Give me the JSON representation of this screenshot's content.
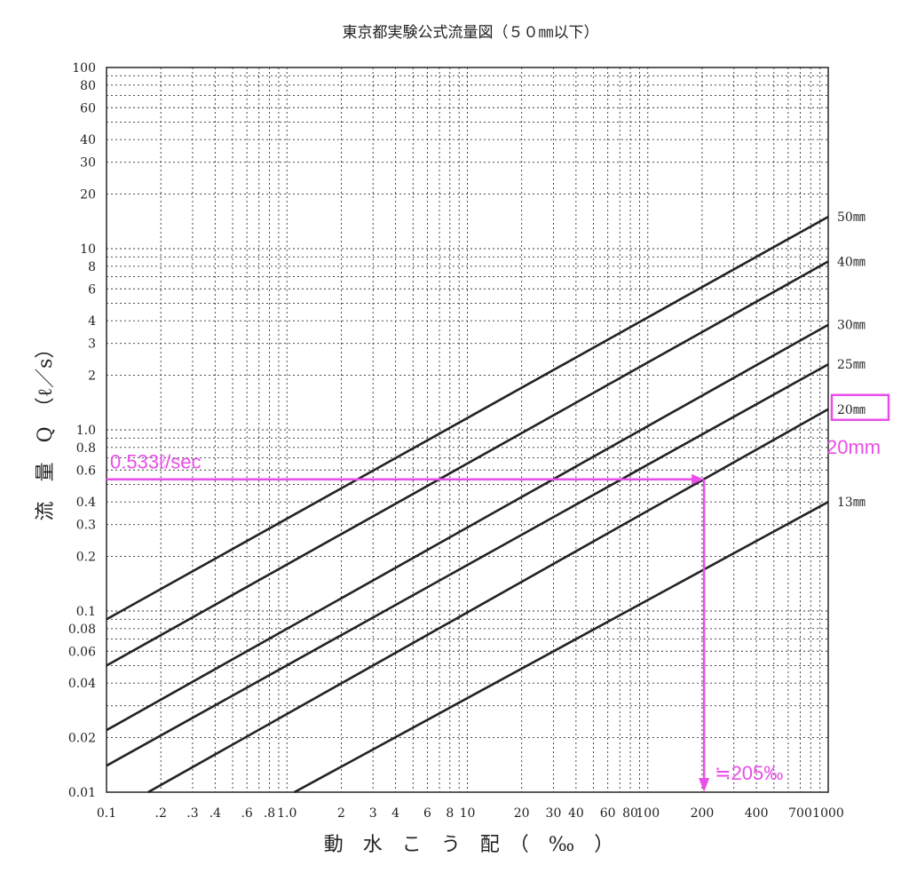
{
  "chart_data": {
    "type": "line",
    "title": "東京都実験公式流量図（５０㎜以下）",
    "xlabel": "動　水　こ　う　配　（　‰　）",
    "ylabel": "流　量　Q　（ℓ／s）",
    "x_scale": "log",
    "y_scale": "log",
    "xlim": [
      0.1,
      1000
    ],
    "ylim": [
      0.01,
      100
    ],
    "grid": true,
    "x_ticks": [
      0.1,
      0.2,
      0.3,
      0.4,
      0.6,
      0.8,
      1,
      2,
      3,
      4,
      6,
      8,
      10,
      20,
      30,
      40,
      60,
      80,
      100,
      200,
      400,
      700,
      1000
    ],
    "x_tick_labels": [
      "0.1",
      ".2",
      ".3",
      ".4",
      ".6",
      ".8",
      "1.0",
      "2",
      "3",
      "4",
      "6",
      "8",
      "10",
      "20",
      "30",
      "40",
      "60",
      "80",
      "100",
      "200",
      "400",
      "700",
      "1000"
    ],
    "y_ticks": [
      100,
      80,
      60,
      40,
      30,
      20,
      10,
      8,
      6,
      4,
      3,
      2,
      1,
      0.8,
      0.6,
      0.4,
      0.3,
      0.2,
      0.1,
      0.08,
      0.06,
      0.04,
      0.02,
      0.01
    ],
    "y_tick_labels": [
      "100",
      "80",
      "60",
      "40",
      "30",
      "20",
      "10",
      "8",
      "6",
      "4",
      "3",
      "2",
      "1.0",
      "0.8",
      "0.6",
      "0.4",
      "0.3",
      "0.2",
      "0.1",
      "0.08",
      "0.06",
      "0.04",
      "0.02",
      "0.01"
    ],
    "series": [
      {
        "name": "50㎜",
        "points": [
          [
            0.1,
            0.09
          ],
          [
            1000,
            15
          ]
        ]
      },
      {
        "name": "40㎜",
        "points": [
          [
            0.1,
            0.05
          ],
          [
            1000,
            8.5
          ]
        ]
      },
      {
        "name": "30㎜",
        "points": [
          [
            0.1,
            0.022
          ],
          [
            1000,
            3.8
          ]
        ]
      },
      {
        "name": "25㎜",
        "points": [
          [
            0.1,
            0.014
          ],
          [
            1000,
            2.3
          ]
        ]
      },
      {
        "name": "20㎜",
        "points": [
          [
            0.17,
            0.01
          ],
          [
            1000,
            1.3
          ]
        ]
      },
      {
        "name": "13㎜",
        "points": [
          [
            1.1,
            0.01
          ],
          [
            1000,
            0.4
          ]
        ]
      }
    ],
    "annotations": {
      "color": "#e84ee8",
      "flow_value": 0.533,
      "flow_label": "0.533ℓ/sec",
      "gradient_value": 205,
      "gradient_label": "≒205‰",
      "highlighted_series": "20㎜",
      "highlight_label": "20mm"
    }
  }
}
